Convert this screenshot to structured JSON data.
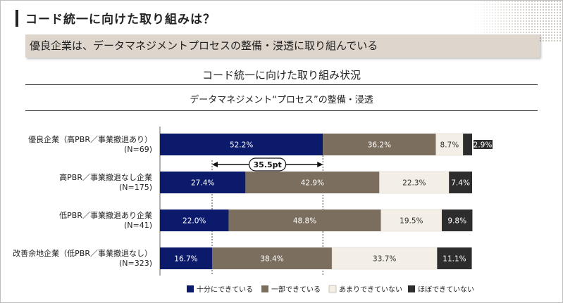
{
  "page": {
    "title": "コード統一に向けた取り組みは？",
    "banner": "優良企業は、データマネジメントプロセスの整備・浸透に取り組んでいる"
  },
  "colors": {
    "full": "#0b1a6b",
    "partial": "#7b6e5f",
    "barely": "#f3eee6",
    "none": "#2d2d2d"
  },
  "chart_data": {
    "type": "bar",
    "orientation": "horizontal-stacked-100",
    "title": "コード統一に向けた取り組み状況",
    "subtitle": "データマネジメント“プロセス”の整備・浸透",
    "unit": "%",
    "categories": [
      [
        "優良企業（高PBR／事業撤退あり）",
        "(N=69)"
      ],
      [
        "高PBR／事業撤退なし企業",
        "(N=175)"
      ],
      [
        "低PBR／事業撤退あり企業",
        "(N=41)"
      ],
      [
        "改善余地企業（低PBR／事業撤退なし）",
        "(N=323)"
      ]
    ],
    "series": [
      {
        "name": "十分にできている",
        "values": [
          52.2,
          27.4,
          22.0,
          16.7
        ],
        "labels": [
          "52.2%",
          "27.4%",
          "22.0%",
          "16.7%"
        ]
      },
      {
        "name": "一部できている",
        "values": [
          36.2,
          42.9,
          48.8,
          38.4
        ],
        "labels": [
          "36.2%",
          "42.9%",
          "48.8%",
          "38.4%"
        ]
      },
      {
        "name": "あまりできていない",
        "values": [
          8.7,
          22.3,
          19.5,
          33.7
        ],
        "labels": [
          "8.7%",
          "22.3%",
          "19.5%",
          "33.7%"
        ]
      },
      {
        "name": "ほぼできていない",
        "values": [
          2.9,
          7.4,
          9.8,
          11.1
        ],
        "labels": [
          "2.9%",
          "7.4%",
          "9.8%",
          "11.1%"
        ]
      }
    ],
    "annotation": {
      "text": "35.5pt",
      "from_value": 16.7,
      "to_value": 52.2
    },
    "legend_position": "bottom"
  }
}
